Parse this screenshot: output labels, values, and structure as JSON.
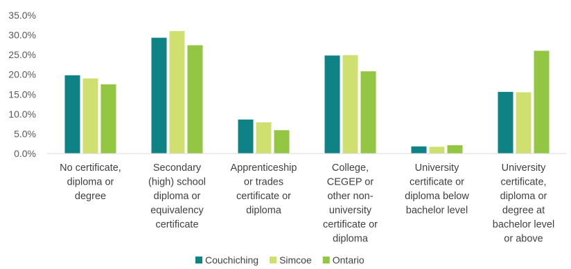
{
  "chart_data": {
    "type": "bar",
    "title": "",
    "xlabel": "",
    "ylabel": "",
    "ylim": [
      0,
      35
    ],
    "y_ticks": [
      "0.0%",
      "5.0%",
      "10.0%",
      "15.0%",
      "20.0%",
      "25.0%",
      "30.0%",
      "35.0%"
    ],
    "grid": false,
    "legend_position": "bottom",
    "categories": [
      [
        "No certificate,",
        "diploma or",
        "degree"
      ],
      [
        "Secondary",
        "(high) school",
        "diploma or",
        "equivalency",
        "certificate"
      ],
      [
        "Apprenticeship",
        "or trades",
        "certificate or",
        "diploma"
      ],
      [
        "College,",
        "CEGEP or",
        "other non-",
        "university",
        "certificate or",
        "diploma"
      ],
      [
        "University",
        "certificate or",
        "diploma below",
        "bachelor level"
      ],
      [
        "University",
        "certificate,",
        "diploma or",
        "degree at",
        "bachelor level",
        "or above"
      ]
    ],
    "series": [
      {
        "name": "Couchiching",
        "color": "#0e8285",
        "values": [
          19.8,
          29.3,
          8.6,
          24.8,
          1.8,
          15.6
        ]
      },
      {
        "name": "Simcoe",
        "color": "#cfe070",
        "values": [
          19.0,
          31.0,
          7.9,
          24.9,
          1.7,
          15.5
        ]
      },
      {
        "name": "Ontario",
        "color": "#93c643",
        "values": [
          17.5,
          27.4,
          5.9,
          20.8,
          2.1,
          26.0
        ]
      }
    ]
  }
}
